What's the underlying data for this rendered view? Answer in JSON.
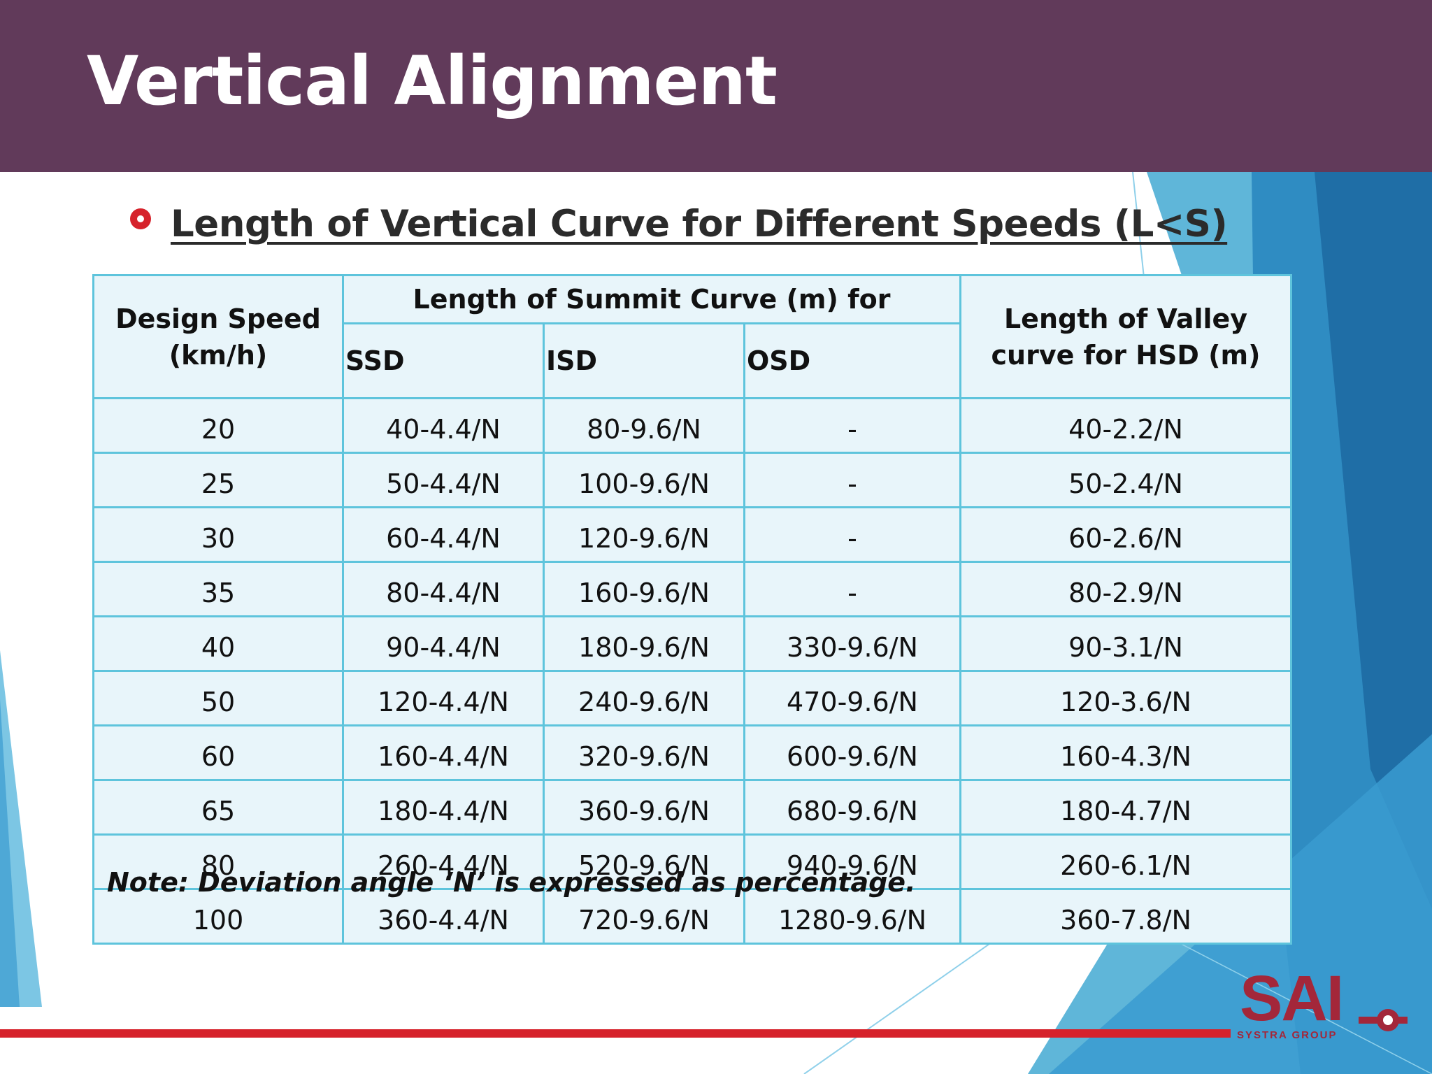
{
  "slide": {
    "title": "Vertical Alignment",
    "subheading": "Length of Vertical Curve for Different Speeds (L<S)",
    "note": "Note: Deviation angle ‘N’ is expressed as percentage."
  },
  "table": {
    "headers": {
      "design_speed": "Design Speed (km/h)",
      "summit_group": "Length of Summit Curve (m) for",
      "ssd": "SSD",
      "isd": "ISD",
      "osd": "OSD",
      "valley": "Length of Valley curve for HSD (m)"
    },
    "rows": [
      {
        "speed": "20",
        "ssd": "40-4.4/N",
        "isd": "80-9.6/N",
        "osd": "-",
        "valley": "40-2.2/N"
      },
      {
        "speed": "25",
        "ssd": "50-4.4/N",
        "isd": "100-9.6/N",
        "osd": "-",
        "valley": "50-2.4/N"
      },
      {
        "speed": "30",
        "ssd": "60-4.4/N",
        "isd": "120-9.6/N",
        "osd": "-",
        "valley": "60-2.6/N"
      },
      {
        "speed": "35",
        "ssd": "80-4.4/N",
        "isd": "160-9.6/N",
        "osd": "-",
        "valley": "80-2.9/N"
      },
      {
        "speed": "40",
        "ssd": "90-4.4/N",
        "isd": "180-9.6/N",
        "osd": "330-9.6/N",
        "valley": "90-3.1/N"
      },
      {
        "speed": "50",
        "ssd": "120-4.4/N",
        "isd": "240-9.6/N",
        "osd": "470-9.6/N",
        "valley": "120-3.6/N"
      },
      {
        "speed": "60",
        "ssd": "160-4.4/N",
        "isd": "320-9.6/N",
        "osd": "600-9.6/N",
        "valley": "160-4.3/N"
      },
      {
        "speed": "65",
        "ssd": "180-4.4/N",
        "isd": "360-9.6/N",
        "osd": "680-9.6/N",
        "valley": "180-4.7/N"
      },
      {
        "speed": "80",
        "ssd": "260-4.4/N",
        "isd": "520-9.6/N",
        "osd": "940-9.6/N",
        "valley": "260-6.1/N"
      },
      {
        "speed": "100",
        "ssd": "360-4.4/N",
        "isd": "720-9.6/N",
        "osd": "1280-9.6/N",
        "valley": "360-7.8/N"
      }
    ]
  },
  "logo": {
    "text": "SAI",
    "subtext": "SYSTRA GROUP"
  },
  "colors": {
    "title_bar": "#613a5a",
    "accent_red": "#d6222b",
    "table_border": "#5ec4dc",
    "table_fill": "#e8f5fa",
    "logo": "#a3273a"
  }
}
